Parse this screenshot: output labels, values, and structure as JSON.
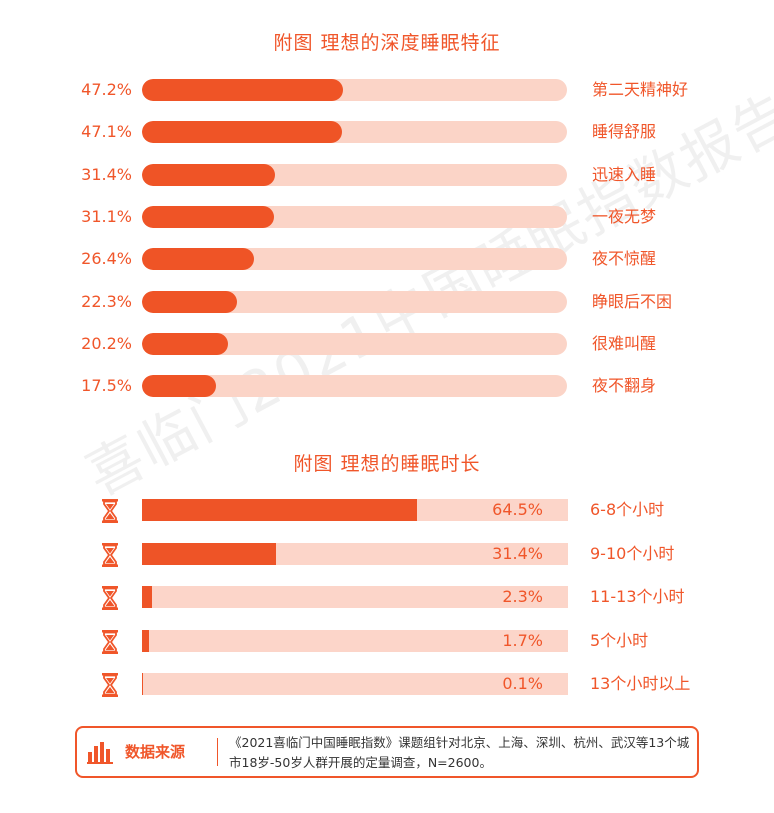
{
  "colors": {
    "accent": "#ef5426",
    "track": "#fbd4c7",
    "text": "#f0562a"
  },
  "watermark": "喜临门2021中国睡眠指数报告",
  "chart_data": [
    {
      "type": "bar",
      "title": "附图  理想的深度睡眠特征",
      "categories": [
        "第二天精神好",
        "睡得舒服",
        "迅速入睡",
        "一夜无梦",
        "夜不惊醒",
        "睁眼后不困",
        "很难叫醒",
        "夜不翻身"
      ],
      "values": [
        47.2,
        47.1,
        31.4,
        31.1,
        26.4,
        22.3,
        20.2,
        17.5
      ],
      "value_labels": [
        "47.2%",
        "47.1%",
        "31.4%",
        "31.1%",
        "26.4%",
        "22.3%",
        "20.2%",
        "17.5%"
      ],
      "unit": "%",
      "xlim": [
        0,
        100
      ]
    },
    {
      "type": "bar",
      "title": "附图  理想的睡眠时长",
      "categories": [
        "6-8个小时",
        "9-10个小时",
        "11-13个小时",
        "5个小时",
        "13个小时以上"
      ],
      "values": [
        64.5,
        31.4,
        2.3,
        1.7,
        0.1
      ],
      "value_labels": [
        "64.5%",
        "31.4%",
        "2.3%",
        "1.7%",
        "0.1%"
      ],
      "unit": "%",
      "xlim": [
        0,
        100
      ],
      "row_icon": "hourglass-icon"
    }
  ],
  "source": {
    "icon": "bar-chart-icon",
    "label": "数据来源",
    "text": "《2021喜临门中国睡眠指数》课题组针对北京、上海、深圳、杭州、武汉等13个城市18岁-50岁人群开展的定量调查，N=2600。"
  }
}
